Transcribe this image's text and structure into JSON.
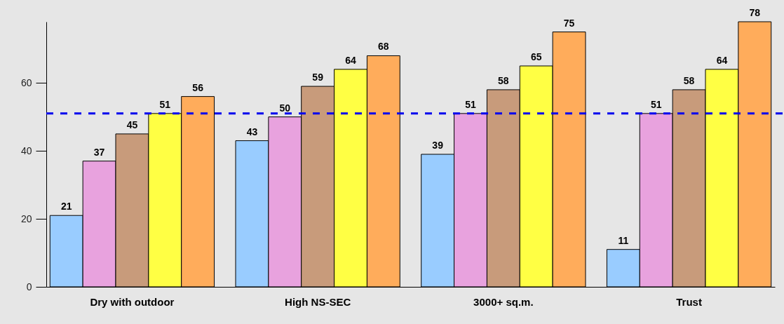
{
  "chart_data": {
    "type": "bar",
    "categories": [
      "Dry with outdoor",
      "High NS-SEC",
      "3000+ sq.m.",
      "Trust"
    ],
    "series": [
      {
        "color": "#99ccff",
        "values": [
          21,
          43,
          39,
          11
        ]
      },
      {
        "color": "#e8a2de",
        "values": [
          37,
          50,
          51,
          51
        ]
      },
      {
        "color": "#c89b7b",
        "values": [
          45,
          59,
          58,
          58
        ]
      },
      {
        "color": "#ffff44",
        "values": [
          51,
          64,
          65,
          64
        ]
      },
      {
        "color": "#ffac5b",
        "values": [
          56,
          68,
          75,
          78
        ]
      }
    ],
    "ylim": [
      0,
      78
    ],
    "yticks": [
      0,
      20,
      40,
      60
    ],
    "grid": false,
    "legend": false,
    "data_labels": true,
    "ref_lines": [
      {
        "axis": "y",
        "value": 51,
        "color": "#0000ee",
        "line_style": "dashed"
      }
    ]
  }
}
